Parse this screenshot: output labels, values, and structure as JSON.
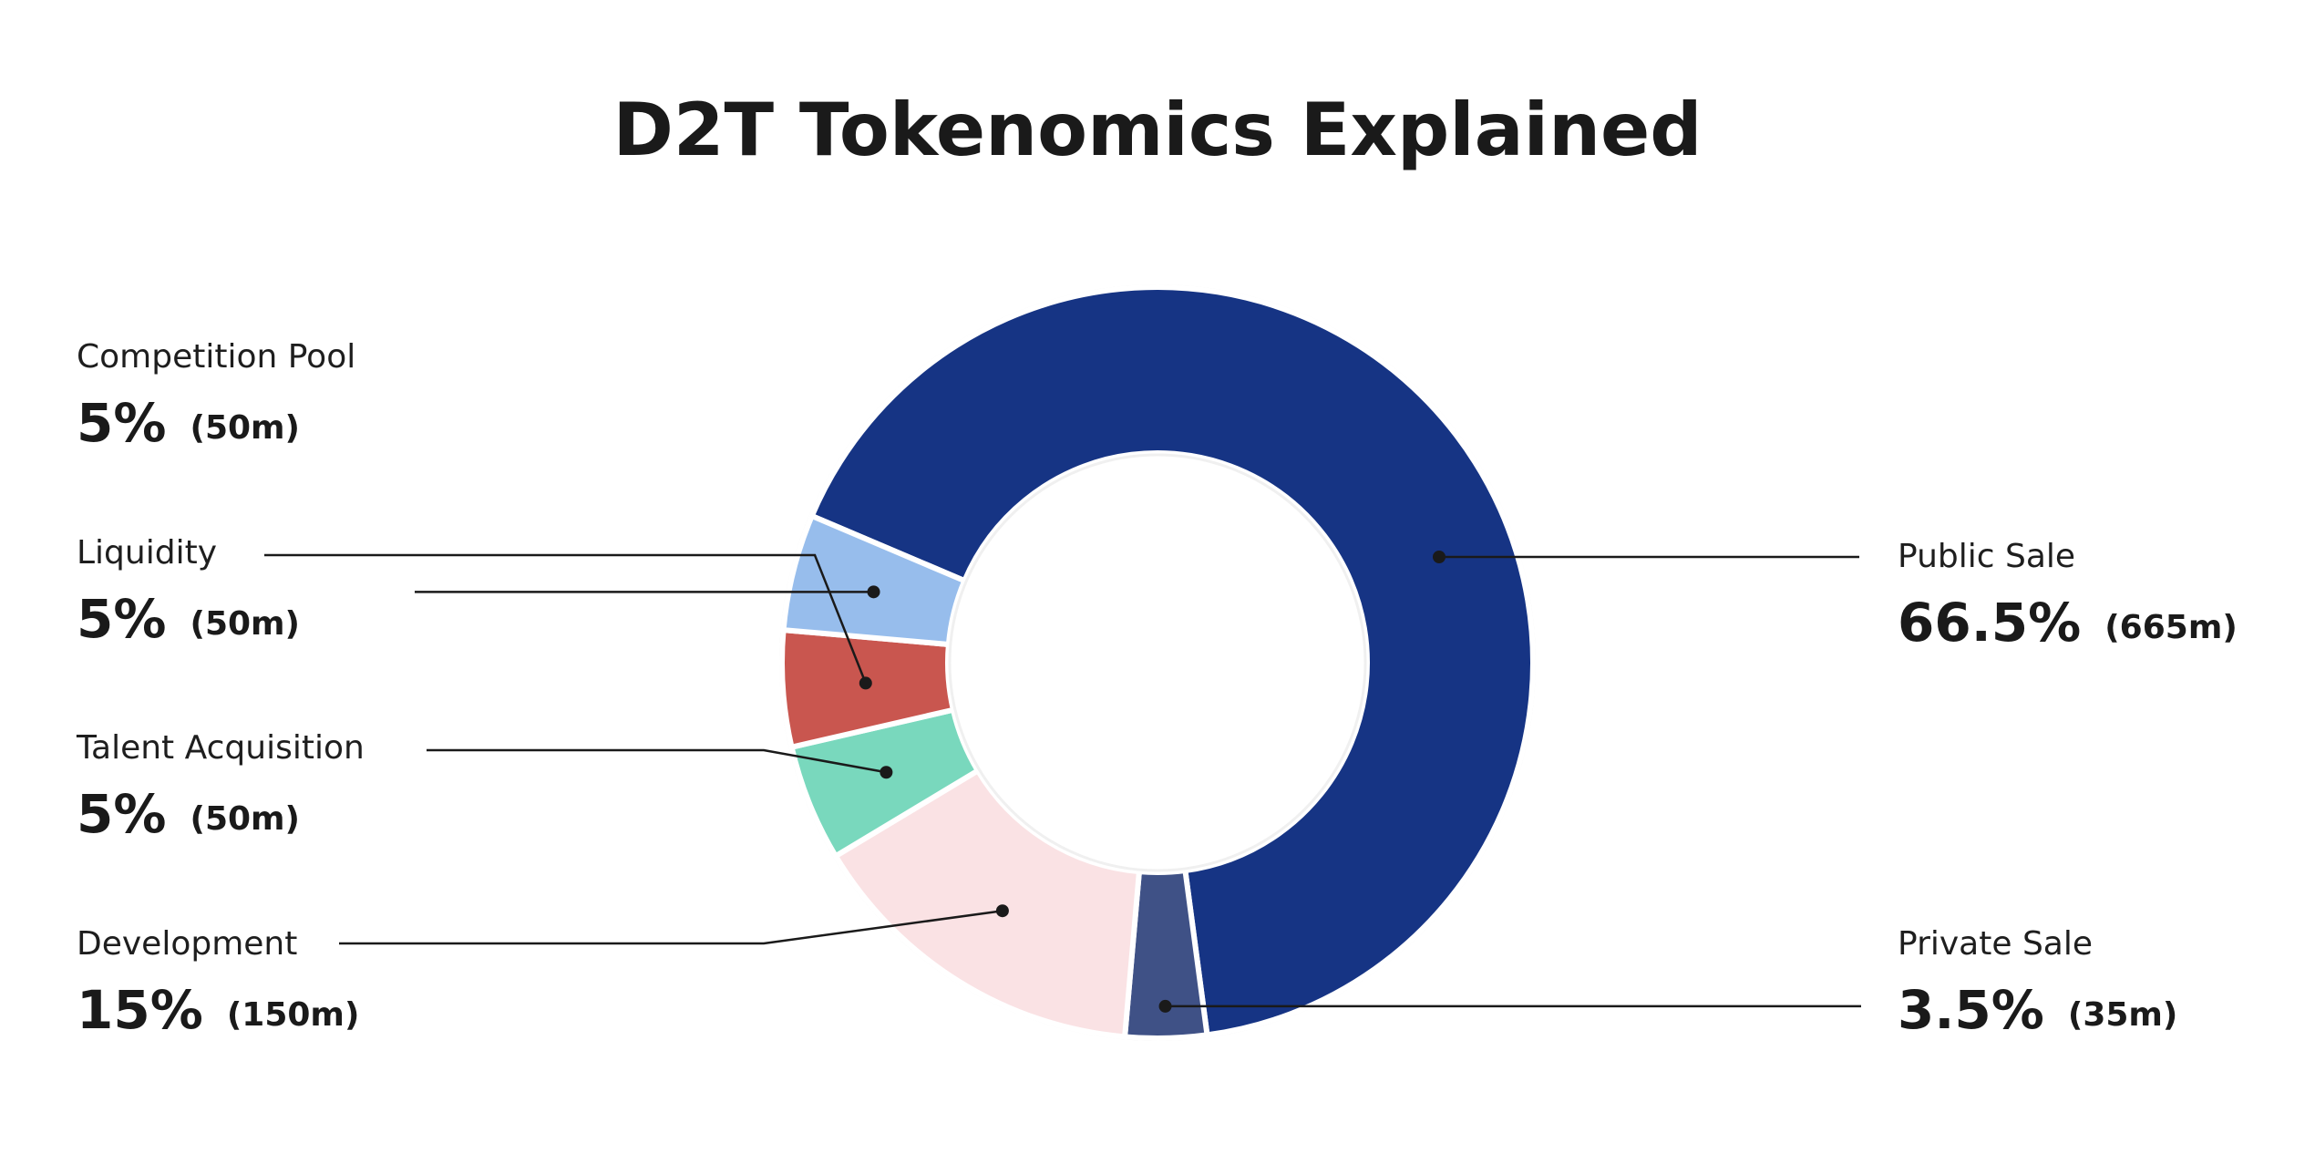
{
  "chart_data": {
    "type": "pie",
    "title": "D2T Tokenomics Explained",
    "donut": true,
    "slices": [
      {
        "name": "Public Sale",
        "percent": 66.5,
        "percent_label": "66.5%",
        "amount_label": "(665m)",
        "color": "#163484"
      },
      {
        "name": "Private Sale",
        "percent": 3.5,
        "percent_label": "3.5%",
        "amount_label": "(35m)",
        "color": "#3f5186"
      },
      {
        "name": "Development",
        "percent": 15,
        "percent_label": "15%",
        "amount_label": "(150m)",
        "color": "#fae2e4"
      },
      {
        "name": "Talent Acquisition",
        "percent": 5,
        "percent_label": "5%",
        "amount_label": "(50m)",
        "color": "#79d8bd"
      },
      {
        "name": "Liquidity",
        "percent": 5,
        "percent_label": "5%",
        "amount_label": "(50m)",
        "color": "#c9564f"
      },
      {
        "name": "Competition Pool",
        "percent": 5,
        "percent_label": "5%",
        "amount_label": "(50m)",
        "color": "#97bdec"
      }
    ]
  }
}
